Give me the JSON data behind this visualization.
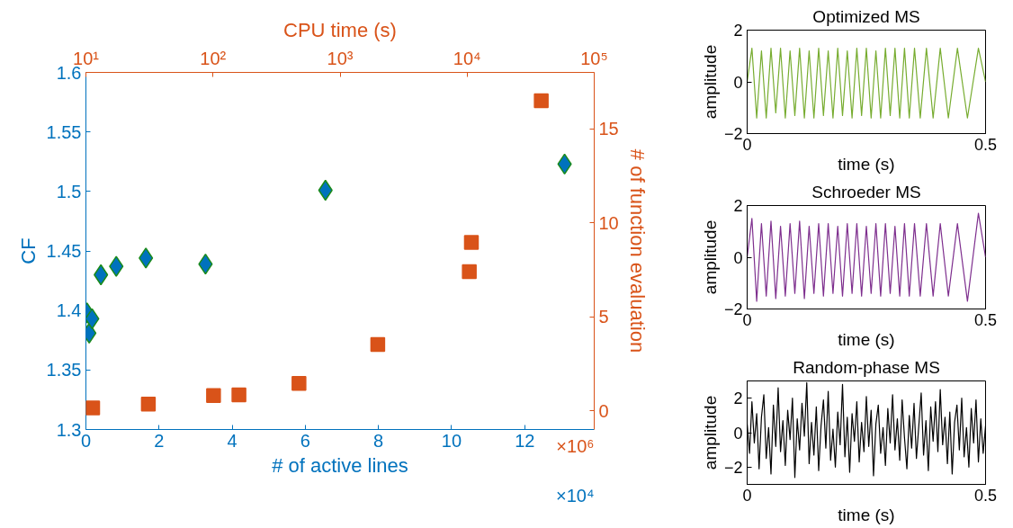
{
  "chart_data": [
    {
      "type": "scatter",
      "xlabel": "# of active lines",
      "ylabel": "CF",
      "xlim": [
        0,
        13.9
      ],
      "xticks": [
        0,
        2,
        4,
        6,
        8,
        10,
        12
      ],
      "ylim": [
        1.3,
        1.6
      ],
      "yticks": [
        1.3,
        1.35,
        1.4,
        1.45,
        1.5,
        1.55,
        1.6
      ],
      "grid": false,
      "annotations": [
        "×10⁴"
      ],
      "series": [
        {
          "marker": "diamond",
          "color": "#0072bd",
          "x": [
            0.03,
            0.09,
            0.17,
            0.41,
            0.83,
            1.64,
            3.27,
            6.55,
            13.09
          ],
          "values": [
            1.398,
            1.381,
            1.393,
            1.43,
            1.437,
            1.444,
            1.439,
            1.501,
            1.523
          ]
        }
      ]
    },
    {
      "type": "scatter",
      "xlabel": "CPU time (s)",
      "ylabel": "# of function evaluation",
      "xlim": [
        10,
        100000
      ],
      "xticks": [
        {
          "value": 10,
          "label": "10¹"
        },
        {
          "value": 100,
          "label": "10²"
        },
        {
          "value": 1000,
          "label": "10³"
        },
        {
          "value": 10000,
          "label": "10⁴"
        },
        {
          "value": 100000,
          "label": "10⁵"
        }
      ],
      "ylim": [
        -1,
        18
      ],
      "yticks": [
        0,
        5,
        10,
        15
      ],
      "log": "x",
      "grid": false,
      "annotations": [
        "×10⁶"
      ],
      "series": [
        {
          "marker": "square",
          "color": "#d95319",
          "x": [
            11.3,
            31,
            101,
            160,
            475,
            1980,
            10400,
            10800,
            38300
          ],
          "values": [
            0.15,
            0.35,
            0.81,
            0.84,
            1.45,
            3.52,
            7.4,
            8.95,
            16.49
          ]
        }
      ]
    },
    {
      "type": "line",
      "title": "Optimized MS",
      "xlabel": "time (s)",
      "ylabel": "amplitude",
      "xlim": [
        0,
        0.5
      ],
      "xticks": [
        0,
        0.5
      ],
      "ylim": [
        -2,
        2
      ],
      "yticks": [
        -2,
        0,
        2
      ],
      "grid": false,
      "series": [
        {
          "color": "#77ac30",
          "x": [
            0,
            0.01,
            0.02,
            0.03,
            0.04,
            0.05,
            0.06,
            0.07,
            0.08,
            0.09,
            0.1,
            0.11,
            0.12,
            0.13,
            0.14,
            0.15,
            0.16,
            0.17,
            0.18,
            0.19,
            0.2,
            0.21,
            0.22,
            0.23,
            0.24,
            0.25,
            0.26,
            0.27,
            0.28,
            0.29,
            0.3,
            0.31,
            0.32,
            0.33,
            0.34,
            0.351,
            0.363,
            0.376,
            0.39,
            0.405,
            0.422,
            0.441,
            0.462,
            0.485,
            0.5
          ],
          "values": [
            0,
            1.3,
            -1.4,
            1.2,
            -1.4,
            1.3,
            -1.2,
            1.3,
            -1.4,
            1.2,
            -1.3,
            1.3,
            -1.4,
            1.2,
            -1.4,
            1.3,
            -1.3,
            1.2,
            -1.4,
            1.3,
            -1.3,
            1.2,
            -1.4,
            1.3,
            -1.3,
            1.3,
            -1.4,
            1.2,
            -1.4,
            1.3,
            -1.3,
            1.3,
            -1.4,
            1.3,
            -1.4,
            1.3,
            -1.4,
            1.3,
            -1.4,
            1.3,
            -1.4,
            1.3,
            -1.4,
            1.3,
            0
          ]
        }
      ]
    },
    {
      "type": "line",
      "title": "Schroeder MS",
      "xlabel": "time (s)",
      "ylabel": "amplitude",
      "xlim": [
        0,
        0.5
      ],
      "xticks": [
        0,
        0.5
      ],
      "ylim": [
        -2,
        2
      ],
      "yticks": [
        -2,
        0,
        2
      ],
      "grid": false,
      "series": [
        {
          "color": "#7e2f8e",
          "x": [
            0,
            0.01,
            0.02,
            0.03,
            0.04,
            0.05,
            0.06,
            0.07,
            0.08,
            0.09,
            0.1,
            0.11,
            0.12,
            0.13,
            0.14,
            0.15,
            0.16,
            0.17,
            0.18,
            0.19,
            0.2,
            0.21,
            0.22,
            0.23,
            0.24,
            0.25,
            0.26,
            0.27,
            0.28,
            0.29,
            0.3,
            0.31,
            0.32,
            0.33,
            0.34,
            0.351,
            0.363,
            0.376,
            0.39,
            0.405,
            0.422,
            0.441,
            0.462,
            0.485,
            0.5
          ],
          "values": [
            0,
            1.5,
            -1.7,
            1.3,
            -1.5,
            1.4,
            -1.6,
            1.2,
            -1.5,
            1.3,
            -1.4,
            1.4,
            -1.6,
            1.2,
            -1.4,
            1.3,
            -1.5,
            1.3,
            -1.4,
            1.2,
            -1.5,
            1.3,
            -1.4,
            1.3,
            -1.5,
            1.2,
            -1.4,
            1.3,
            -1.5,
            1.3,
            -1.4,
            1.2,
            -1.5,
            1.3,
            -1.5,
            1.3,
            -1.5,
            1.3,
            -1.5,
            1.3,
            -1.5,
            1.3,
            -1.7,
            1.7,
            0
          ]
        }
      ]
    },
    {
      "type": "line",
      "title": "Random-phase MS",
      "xlabel": "time (s)",
      "ylabel": "amplitude",
      "xlim": [
        0,
        0.5
      ],
      "xticks": [
        0,
        0.5
      ],
      "ylim": [
        -3,
        3
      ],
      "yticks": [
        -2,
        0,
        2
      ],
      "grid": false,
      "series": [
        {
          "color": "#000000",
          "x": [
            0,
            0.005,
            0.01,
            0.015,
            0.02,
            0.025,
            0.03,
            0.035,
            0.04,
            0.045,
            0.05,
            0.055,
            0.06,
            0.065,
            0.07,
            0.075,
            0.08,
            0.085,
            0.09,
            0.095,
            0.1,
            0.105,
            0.11,
            0.115,
            0.12,
            0.125,
            0.13,
            0.135,
            0.14,
            0.145,
            0.15,
            0.155,
            0.16,
            0.165,
            0.17,
            0.175,
            0.18,
            0.185,
            0.19,
            0.195,
            0.2,
            0.205,
            0.21,
            0.215,
            0.22,
            0.225,
            0.23,
            0.235,
            0.24,
            0.245,
            0.25,
            0.255,
            0.26,
            0.265,
            0.27,
            0.275,
            0.28,
            0.285,
            0.29,
            0.295,
            0.3,
            0.305,
            0.31,
            0.315,
            0.32,
            0.325,
            0.33,
            0.335,
            0.34,
            0.345,
            0.35,
            0.355,
            0.36,
            0.365,
            0.37,
            0.375,
            0.38,
            0.385,
            0.39,
            0.395,
            0.4,
            0.405,
            0.41,
            0.415,
            0.42,
            0.425,
            0.43,
            0.435,
            0.44,
            0.445,
            0.45,
            0.455,
            0.46,
            0.465,
            0.47,
            0.475,
            0.48,
            0.485,
            0.49,
            0.495,
            0.5
          ],
          "values": [
            0.5,
            -1.2,
            1.8,
            -0.6,
            1.1,
            -2.1,
            0.9,
            2.2,
            -1.5,
            0.3,
            -2.4,
            1.6,
            -0.8,
            2.6,
            -1.1,
            0.7,
            -1.9,
            1.3,
            -0.4,
            2.0,
            -2.6,
            0.8,
            -1.0,
            1.7,
            -0.2,
            2.9,
            -1.8,
            0.6,
            -1.3,
            1.5,
            -2.2,
            0.4,
            1.9,
            -0.9,
            2.4,
            -1.6,
            0.2,
            -2.0,
            1.2,
            -0.7,
            2.8,
            -1.4,
            0.9,
            -2.3,
            1.1,
            -0.5,
            1.8,
            -1.7,
            0.6,
            -1.1,
            2.1,
            -0.8,
            1.3,
            -2.5,
            0.5,
            1.6,
            -1.2,
            0.3,
            -1.9,
            1.4,
            -0.6,
            2.2,
            -1.0,
            0.8,
            -1.6,
            1.9,
            -0.3,
            -2.1,
            1.0,
            -0.9,
            1.7,
            -1.5,
            0.4,
            2.3,
            -1.3,
            0.7,
            -2.2,
            1.5,
            -0.5,
            1.8,
            -1.1,
            2.5,
            -0.7,
            0.9,
            -1.8,
            1.2,
            -2.4,
            0.6,
            1.6,
            -1.0,
            2.0,
            -1.4,
            0.3,
            -2.0,
            1.4,
            -0.6,
            1.9,
            -1.7,
            0.8,
            -1.2,
            0.4
          ]
        }
      ]
    }
  ]
}
